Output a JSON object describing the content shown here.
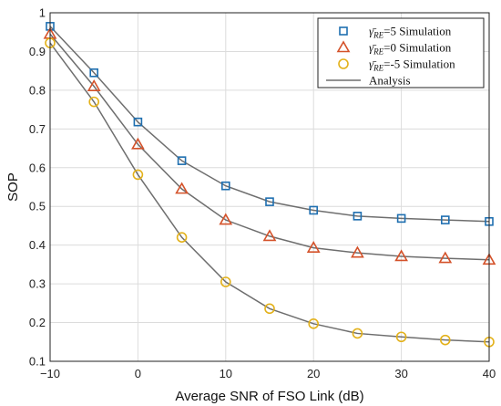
{
  "chart_data": {
    "type": "line",
    "title": "",
    "xlabel": "Average SNR of FSO Link (dB)",
    "ylabel": "SOP",
    "xlim": [
      -10,
      40
    ],
    "ylim": [
      0.1,
      1
    ],
    "xticks": [
      -10,
      0,
      10,
      20,
      30,
      40
    ],
    "yticks": [
      0.1,
      0.2,
      0.3,
      0.4,
      0.5,
      0.6,
      0.7,
      0.8,
      0.9,
      1
    ],
    "grid": true,
    "legend_position": "top-right",
    "legend": [
      {
        "label_base": "γ̄",
        "label_sub": "RE",
        "label_rest": "=5 Simulation",
        "marker": "square",
        "color": "#1f6fb0"
      },
      {
        "label_base": "γ̄",
        "label_sub": "RE",
        "label_rest": "=0 Simulation",
        "marker": "triangle",
        "color": "#d4522a"
      },
      {
        "label_base": "γ̄",
        "label_sub": "RE",
        "label_rest": "=-5 Simulation",
        "marker": "circle",
        "color": "#e3b11a"
      },
      {
        "label": "Analysis",
        "marker": "line",
        "color": "#6e6e6e"
      }
    ],
    "x": [
      -10,
      -5,
      0,
      5,
      10,
      15,
      20,
      25,
      30,
      35,
      40
    ],
    "series": [
      {
        "values": [
          0.965,
          0.845,
          0.718,
          0.618,
          0.553,
          0.512,
          0.49,
          0.475,
          0.469,
          0.465,
          0.461
        ],
        "marker": "square",
        "color": "#1f6fb0"
      },
      {
        "values": [
          0.945,
          0.81,
          0.66,
          0.545,
          0.465,
          0.423,
          0.393,
          0.38,
          0.371,
          0.366,
          0.362
        ],
        "marker": "triangle",
        "color": "#d4522a"
      },
      {
        "values": [
          0.922,
          0.77,
          0.582,
          0.42,
          0.305,
          0.236,
          0.197,
          0.172,
          0.163,
          0.155,
          0.15
        ],
        "marker": "circle",
        "color": "#e3b11a"
      }
    ],
    "analysis_color": "#6e6e6e"
  }
}
